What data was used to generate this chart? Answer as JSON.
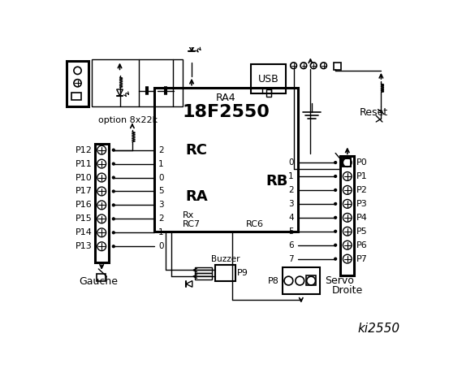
{
  "bg_color": "#ffffff",
  "fg_color": "#000000",
  "title": "ki2550",
  "chip_label": "18F2550",
  "chip_sublabel": "RA4",
  "left_connector_pins": [
    "P12",
    "P11",
    "P10",
    "P17",
    "P16",
    "P15",
    "P14",
    "P13"
  ],
  "right_connector_pins": [
    "P0",
    "P1",
    "P2",
    "P3",
    "P4",
    "P5",
    "P6",
    "P7"
  ],
  "rc_labels": [
    "2",
    "1",
    "0",
    "5",
    "3",
    "2",
    "1",
    "0"
  ],
  "rb_labels": [
    "0",
    "1",
    "2",
    "3",
    "4",
    "5",
    "6",
    "7"
  ],
  "option_text": "option 8x22k",
  "gauche_text": "Gauche",
  "droite_text": "Droite",
  "servo_text": "Servo",
  "buzzer_text": "Buzzer",
  "reset_text": "Reset",
  "usb_text": "USB",
  "p8_text": "P8",
  "p9_text": "P9",
  "rc_text": "RC",
  "ra_text": "RA",
  "rb_text": "RB",
  "rx_text": "Rx",
  "rc7_text": "RC7",
  "rc6_text": "RC6"
}
